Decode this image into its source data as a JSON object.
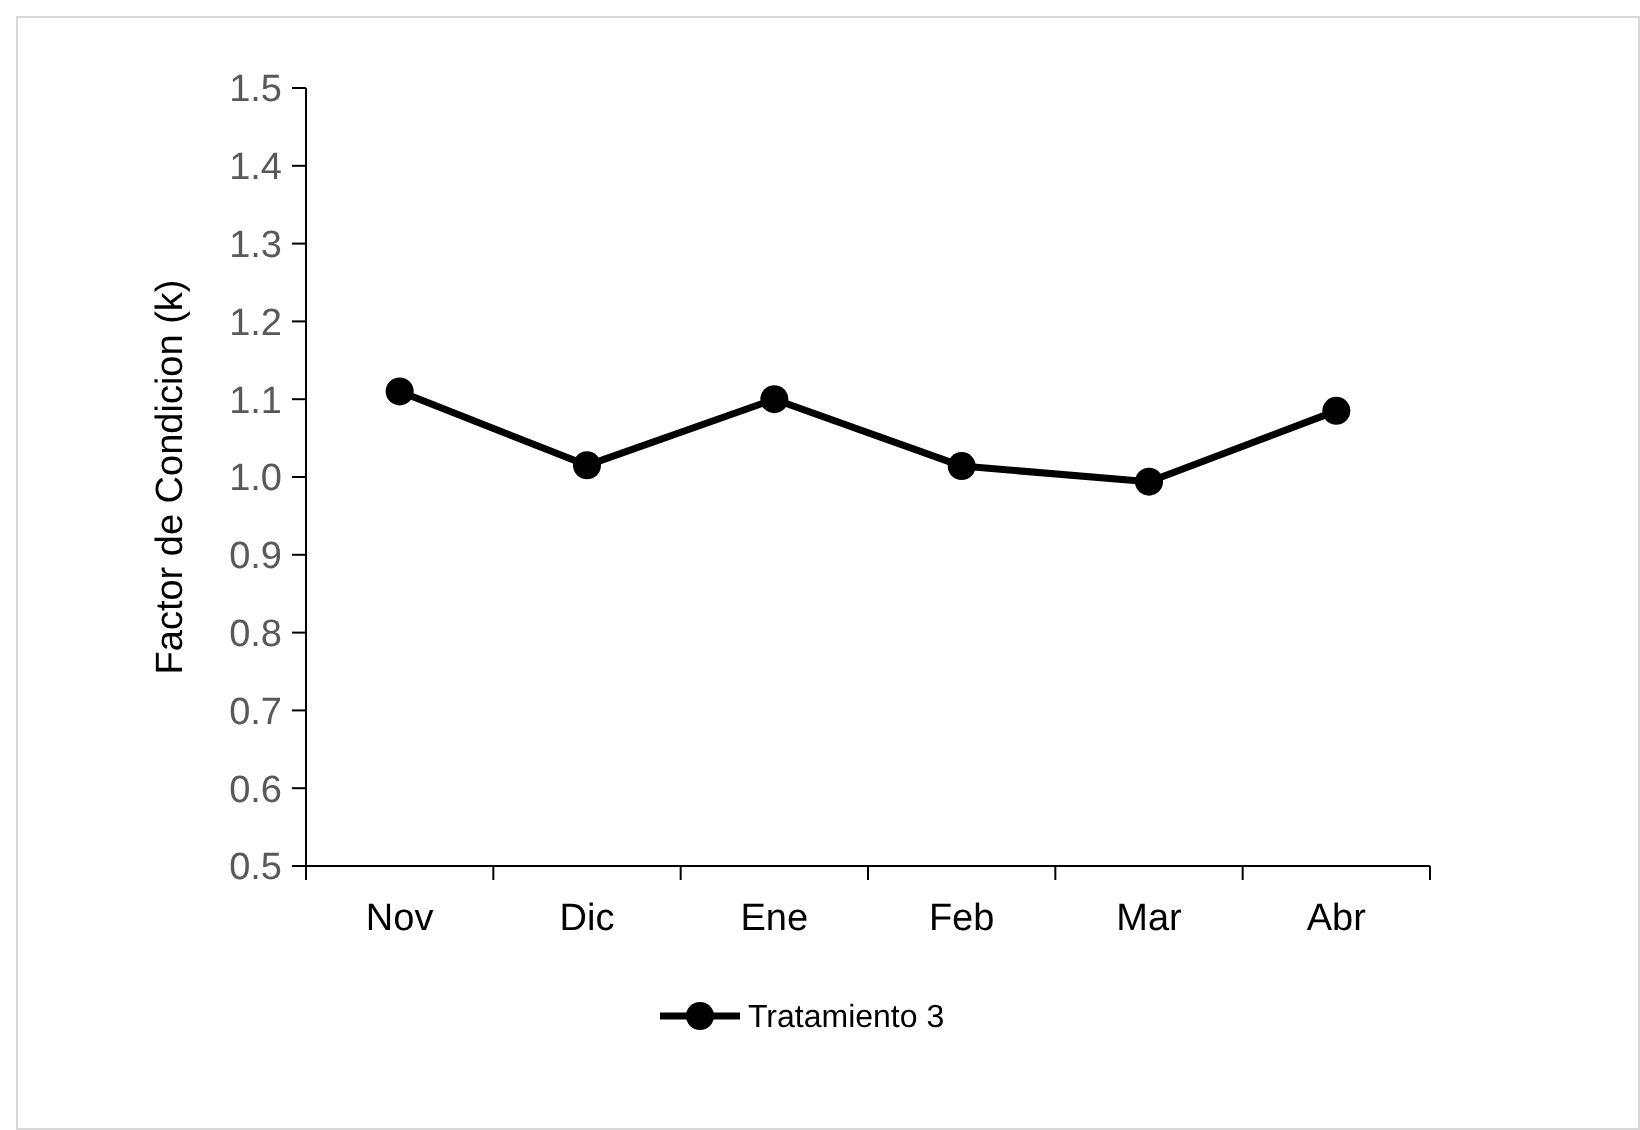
{
  "chart_data": {
    "type": "line",
    "ylabel": "Factor de Condicion (k)",
    "categories": [
      "Nov",
      "Dic",
      "Ene",
      "Feb",
      "Mar",
      "Abr"
    ],
    "series": [
      {
        "name": "Tratamiento 3",
        "color": "#000000",
        "values": [
          1.11,
          1.015,
          1.1,
          1.014,
          0.994,
          1.085
        ]
      }
    ],
    "ylim": [
      0.5,
      1.5
    ],
    "yticks": [
      {
        "value": 0.5,
        "label": "0.5"
      },
      {
        "value": 0.6,
        "label": "0.6"
      },
      {
        "value": 0.7,
        "label": "0.7"
      },
      {
        "value": 0.8,
        "label": "0.8"
      },
      {
        "value": 0.9,
        "label": "0.9"
      },
      {
        "value": 1.0,
        "label": "1.0"
      },
      {
        "value": 1.1,
        "label": "1.1"
      },
      {
        "value": 1.2,
        "label": "1.2"
      },
      {
        "value": 1.3,
        "label": "1.3"
      },
      {
        "value": 1.4,
        "label": "1.4"
      },
      {
        "value": 1.5,
        "label": "1.5"
      }
    ],
    "grid": false,
    "legend": "bottom",
    "marker": "circle",
    "line_style": "solid"
  }
}
